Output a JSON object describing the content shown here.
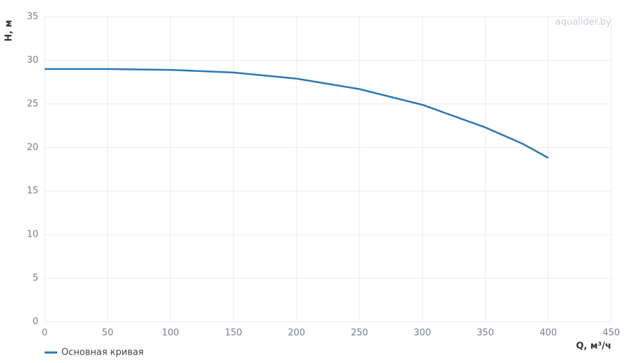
{
  "chart_data": {
    "type": "line",
    "watermark": "aqualider.by",
    "x_label": "Q, м³/ч",
    "y_label": "H, м",
    "x": [
      0,
      50,
      100,
      150,
      200,
      250,
      300,
      350,
      380,
      400
    ],
    "series": [
      {
        "name": "Основная кривая",
        "color": "#2a78b4",
        "values": [
          29.0,
          29.0,
          28.9,
          28.6,
          27.9,
          26.7,
          24.9,
          22.3,
          20.4,
          18.8
        ]
      }
    ],
    "xlim": [
      0,
      450
    ],
    "xticks": [
      0,
      50,
      100,
      150,
      200,
      250,
      300,
      350,
      400,
      450
    ],
    "ylim": [
      0,
      35
    ],
    "yticks": [
      0,
      5,
      10,
      15,
      20,
      25,
      30,
      35
    ],
    "grid": true
  }
}
